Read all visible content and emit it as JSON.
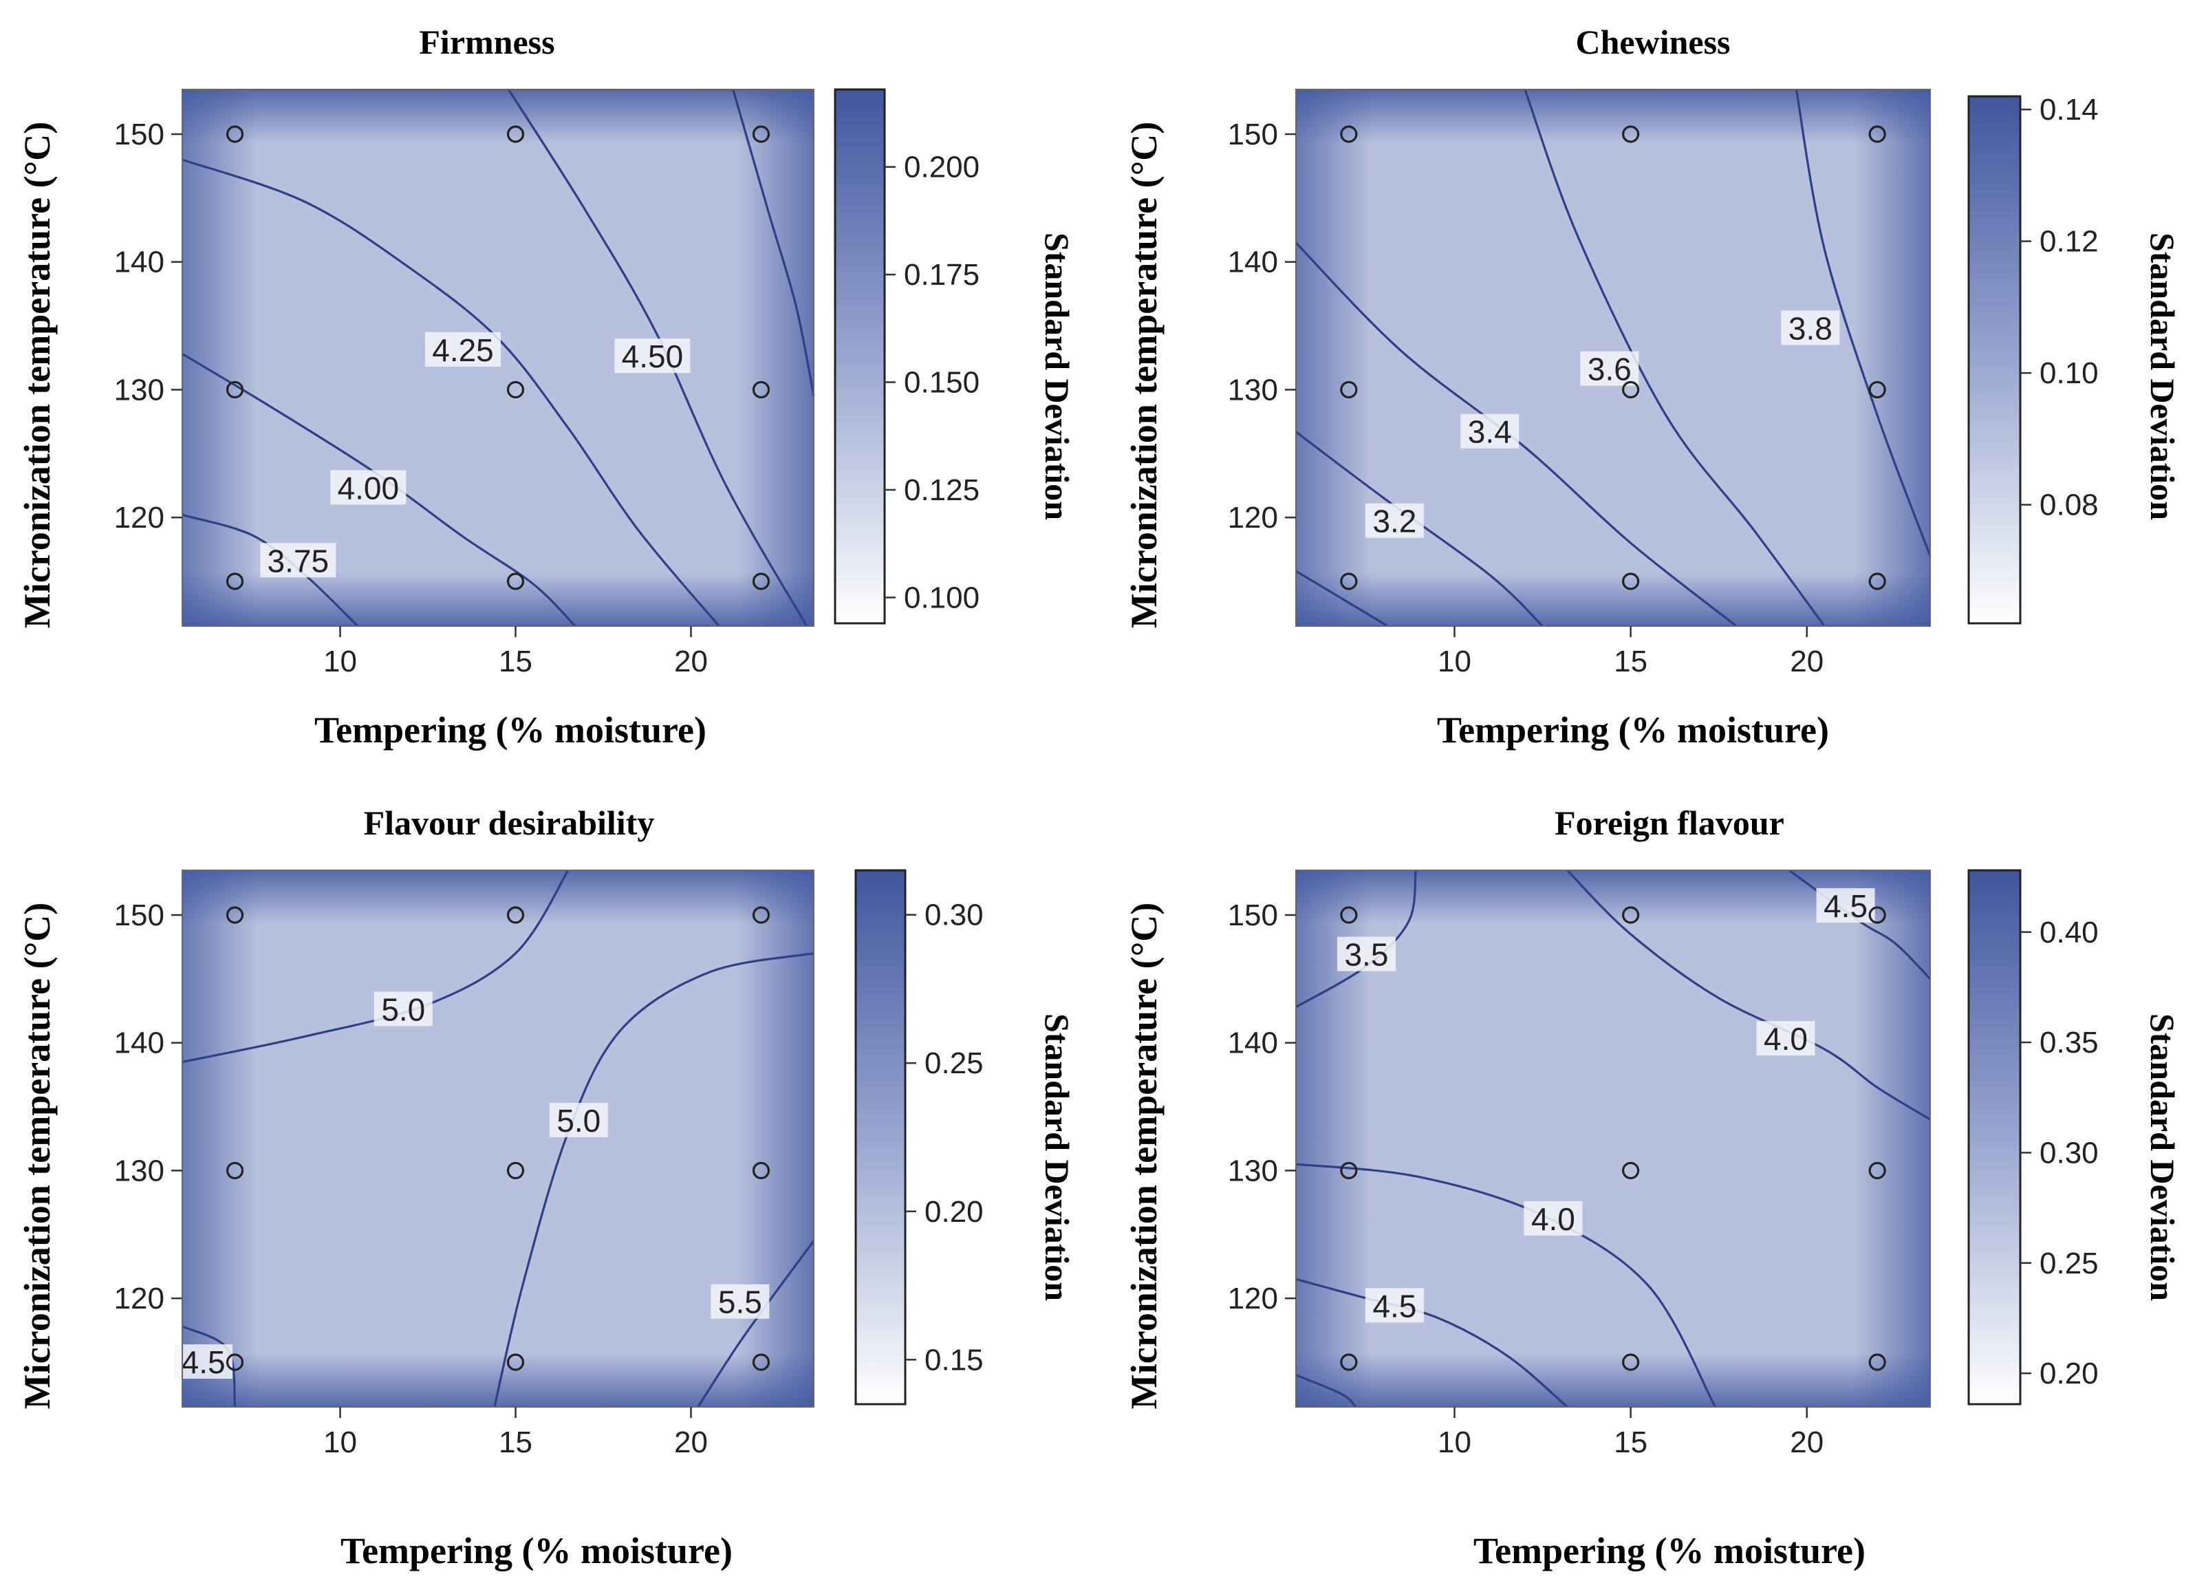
{
  "chart_data": [
    {
      "type": "contour",
      "title": "Firmness",
      "xlabel": "Tempering (% moisture)",
      "ylabel": "Micronization  temperature (°C)",
      "xlim": [
        5.5,
        23.5
      ],
      "ylim": [
        111.5,
        153.5
      ],
      "xticks": [
        "10",
        "15",
        "20"
      ],
      "yticks": [
        "120",
        "130",
        "140",
        "150"
      ],
      "colorbar": {
        "title": "Standard Deviation",
        "range": [
          0.094,
          0.218
        ],
        "ticks": [
          "0.100",
          "0.125",
          "0.150",
          "0.175",
          "0.200"
        ]
      },
      "design_points": [
        [
          7,
          115
        ],
        [
          15,
          115
        ],
        [
          22,
          115
        ],
        [
          7,
          130
        ],
        [
          15,
          130
        ],
        [
          22,
          130
        ],
        [
          7,
          150
        ],
        [
          15,
          150
        ],
        [
          22,
          150
        ]
      ],
      "contours": [
        {
          "level": "3.75",
          "label_at": [
            8.8,
            116.6
          ],
          "points": [
            [
              5.5,
              120.2
            ],
            [
              7.5,
              118.6
            ],
            [
              9,
              115.5
            ],
            [
              10.5,
              111.5
            ]
          ]
        },
        {
          "level": "4.00",
          "label_at": [
            10.8,
            122.3
          ],
          "points": [
            [
              5.5,
              132.8
            ],
            [
              8,
              128.7
            ],
            [
              11,
              123.5
            ],
            [
              13.5,
              118.5
            ],
            [
              15.5,
              114.8
            ],
            [
              16.7,
              111.5
            ]
          ]
        },
        {
          "level": "4.25",
          "label_at": [
            13.5,
            133.1
          ],
          "points": [
            [
              5.5,
              148
            ],
            [
              9,
              144.7
            ],
            [
              12,
              139.5
            ],
            [
              14.5,
              134
            ],
            [
              16.5,
              127
            ],
            [
              18.5,
              119
            ],
            [
              20.8,
              111.5
            ]
          ]
        },
        {
          "level": "4.50",
          "label_at": [
            18.9,
            132.6
          ],
          "points": [
            [
              14.8,
              153.5
            ],
            [
              17,
              144
            ],
            [
              19,
              134.5
            ],
            [
              21,
              122.5
            ],
            [
              23.3,
              111.5
            ]
          ]
        },
        {
          "level": "",
          "label_at": null,
          "points": [
            [
              21.2,
              153.5
            ],
            [
              22.2,
              144
            ],
            [
              23,
              136.5
            ],
            [
              23.5,
              129.5
            ]
          ]
        }
      ]
    },
    {
      "type": "contour",
      "title": "Chewiness",
      "xlabel": "Tempering (% moisture)",
      "ylabel": "Micronization temperature (°C)",
      "xlim": [
        5.5,
        23.5
      ],
      "ylim": [
        111.5,
        153.5
      ],
      "xticks": [
        "10",
        "15",
        "20"
      ],
      "yticks": [
        "120",
        "130",
        "140",
        "150"
      ],
      "colorbar": {
        "title": "Standard Deviation",
        "range": [
          0.062,
          0.142
        ],
        "ticks": [
          "0.08",
          "0.10",
          "0.12",
          "0.14"
        ]
      },
      "design_points": [
        [
          7,
          115
        ],
        [
          15,
          115
        ],
        [
          22,
          115
        ],
        [
          7,
          130
        ],
        [
          15,
          130
        ],
        [
          22,
          130
        ],
        [
          7,
          150
        ],
        [
          15,
          150
        ],
        [
          22,
          150
        ]
      ],
      "contours": [
        {
          "level": "",
          "label_at": null,
          "points": [
            [
              5.5,
              115.8
            ],
            [
              7.5,
              112.5
            ],
            [
              8.1,
              111.5
            ]
          ]
        },
        {
          "level": "3.2",
          "label_at": [
            8.3,
            119.7
          ],
          "points": [
            [
              5.5,
              126.7
            ],
            [
              8,
              121.5
            ],
            [
              11,
              115.5
            ],
            [
              12.5,
              111.5
            ]
          ]
        },
        {
          "level": "3.4",
          "label_at": [
            11,
            126.7
          ],
          "points": [
            [
              5.5,
              141.5
            ],
            [
              8.5,
              133
            ],
            [
              12,
              125.5
            ],
            [
              15,
              118
            ],
            [
              18,
              111.5
            ]
          ]
        },
        {
          "level": "3.6",
          "label_at": [
            14.4,
            131.6
          ],
          "points": [
            [
              12,
              153.5
            ],
            [
              13.5,
              142
            ],
            [
              16,
              128
            ],
            [
              18.5,
              119
            ],
            [
              20.5,
              111.5
            ]
          ]
        },
        {
          "level": "3.8",
          "label_at": [
            20.1,
            134.8
          ],
          "points": [
            [
              19.7,
              153.5
            ],
            [
              20.5,
              141
            ],
            [
              22,
              128
            ],
            [
              23.5,
              117
            ]
          ]
        }
      ]
    },
    {
      "type": "contour",
      "title": "Flavour desirability",
      "xlabel": "Tempering (% moisture)",
      "ylabel": "Micronization temperature (°C)",
      "xlim": [
        5.5,
        23.5
      ],
      "ylim": [
        111.5,
        153.5
      ],
      "xticks": [
        "10",
        "15",
        "20"
      ],
      "yticks": [
        "120",
        "130",
        "140",
        "150"
      ],
      "colorbar": {
        "title": "Standard Deviation",
        "range": [
          0.135,
          0.315
        ],
        "ticks": [
          "0.15",
          "0.20",
          "0.25",
          "0.30"
        ]
      },
      "design_points": [
        [
          7,
          115
        ],
        [
          15,
          115
        ],
        [
          22,
          115
        ],
        [
          7,
          130
        ],
        [
          15,
          130
        ],
        [
          22,
          130
        ],
        [
          7,
          150
        ],
        [
          15,
          150
        ],
        [
          22,
          150
        ]
      ],
      "contours": [
        {
          "level": "5.0",
          "label_at": [
            11.8,
            142.6
          ],
          "points": [
            [
              5.5,
              138.5
            ],
            [
              9,
              140.5
            ],
            [
              12.5,
              143
            ],
            [
              15,
              147
            ],
            [
              16.5,
              153.5
            ]
          ]
        },
        {
          "level": "5.0",
          "label_at": [
            16.8,
            133.9
          ],
          "points": [
            [
              14.4,
              111.5
            ],
            [
              15.2,
              121
            ],
            [
              16.5,
              133
            ],
            [
              18,
              141
            ],
            [
              20.5,
              145.5
            ],
            [
              23.5,
              147
            ]
          ]
        },
        {
          "level": "4.5",
          "label_at": [
            6.1,
            115
          ],
          "points": [
            [
              5.5,
              117.8
            ],
            [
              6.8,
              116
            ],
            [
              7,
              111.5
            ]
          ]
        },
        {
          "level": "5.5",
          "label_at": [
            21.4,
            119.7
          ],
          "points": [
            [
              20.2,
              111.5
            ],
            [
              21.5,
              117
            ],
            [
              23.5,
              124.5
            ]
          ]
        }
      ]
    },
    {
      "type": "contour",
      "title": "Foreign flavour",
      "xlabel": "Tempering (% moisture)",
      "ylabel": "Micronization temperature (°C)",
      "xlim": [
        5.5,
        23.5
      ],
      "ylim": [
        111.5,
        153.5
      ],
      "xticks": [
        "10",
        "15",
        "20"
      ],
      "yticks": [
        "120",
        "130",
        "140",
        "150"
      ],
      "colorbar": {
        "title": "Standard Deviation",
        "range": [
          0.186,
          0.428
        ],
        "ticks": [
          "0.20",
          "0.25",
          "0.30",
          "0.35",
          "0.40"
        ]
      },
      "design_points": [
        [
          7,
          115
        ],
        [
          15,
          115
        ],
        [
          22,
          115
        ],
        [
          7,
          130
        ],
        [
          15,
          130
        ],
        [
          22,
          130
        ],
        [
          7,
          150
        ],
        [
          15,
          150
        ],
        [
          22,
          150
        ]
      ],
      "contours": [
        {
          "level": "3.5",
          "label_at": [
            7.5,
            146.9
          ],
          "points": [
            [
              5.5,
              142.8
            ],
            [
              7.5,
              146
            ],
            [
              8.7,
              149.5
            ],
            [
              8.9,
              153.5
            ]
          ]
        },
        {
          "level": "4.0",
          "label_at": [
            19.4,
            140.3
          ],
          "points": [
            [
              13.2,
              153.5
            ],
            [
              15,
              148.5
            ],
            [
              17.5,
              143.5
            ],
            [
              20.5,
              139.5
            ],
            [
              22,
              136.5
            ],
            [
              23.5,
              134
            ]
          ]
        },
        {
          "level": "4.5",
          "label_at": [
            21.1,
            150.7
          ],
          "points": [
            [
              19.5,
              153.5
            ],
            [
              21.5,
              149.5
            ],
            [
              22.5,
              147.8
            ],
            [
              23.5,
              145
            ]
          ]
        },
        {
          "level": "4.0",
          "label_at": [
            12.8,
            126.2
          ],
          "points": [
            [
              5.5,
              130.5
            ],
            [
              9,
              129.5
            ],
            [
              12.5,
              126.5
            ],
            [
              15.5,
              121
            ],
            [
              17.4,
              111.5
            ]
          ]
        },
        {
          "level": "4.5",
          "label_at": [
            8.3,
            119.4
          ],
          "points": [
            [
              5.5,
              121.5
            ],
            [
              7.5,
              120
            ],
            [
              9.5,
              118.5
            ],
            [
              11.5,
              115.5
            ],
            [
              13.2,
              111.5
            ]
          ]
        },
        {
          "level": "",
          "label_at": null,
          "points": [
            [
              5.5,
              114
            ],
            [
              6.8,
              112.5
            ],
            [
              7.2,
              111.5
            ]
          ]
        }
      ]
    }
  ]
}
